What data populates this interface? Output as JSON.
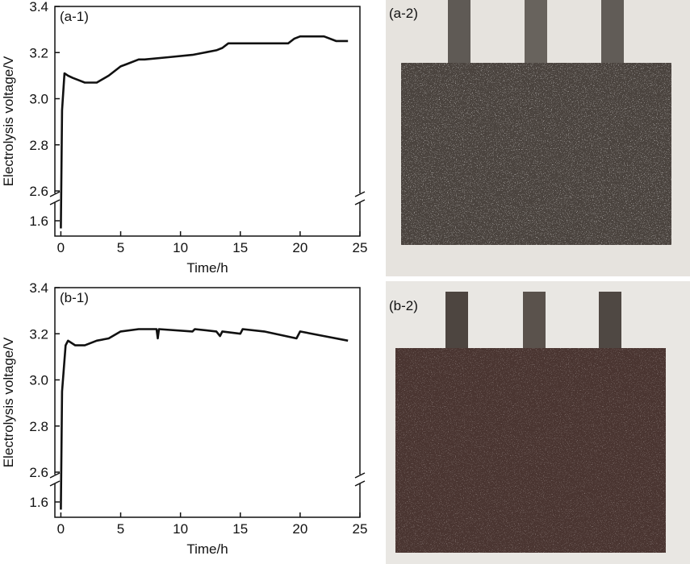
{
  "chart_data": [
    {
      "type": "line",
      "panel_label": "(a-1)",
      "x_label": "Time/h",
      "y_label": "Electrolysis voltage/V",
      "color": "#111111",
      "x": [
        0,
        0.1,
        0.3,
        0.6,
        1,
        1.5,
        2,
        3,
        4,
        5,
        5.5,
        6.5,
        7,
        9,
        11,
        13,
        13.5,
        14,
        17,
        19,
        19.5,
        20,
        22,
        23,
        24
      ],
      "values": [
        1.55,
        2.95,
        3.11,
        3.1,
        3.09,
        3.08,
        3.07,
        3.07,
        3.1,
        3.14,
        3.15,
        3.17,
        3.17,
        3.18,
        3.19,
        3.21,
        3.22,
        3.24,
        3.24,
        3.24,
        3.26,
        3.27,
        3.27,
        3.25,
        3.25
      ],
      "xlim": [
        -0.5,
        25
      ],
      "xticks": [
        0,
        5,
        10,
        15,
        20,
        25
      ],
      "ylim": [
        2.6,
        3.4
      ],
      "yticks": [
        {
          "value": 2.6,
          "label": "2.6"
        },
        {
          "value": 2.8,
          "label": "2.8"
        },
        {
          "value": 3,
          "label": "3.0"
        },
        {
          "value": 3.2,
          "label": "3.2"
        },
        {
          "value": 3.4,
          "label": "3.4"
        }
      ],
      "lower_ylim": [
        1.5,
        1.7
      ],
      "lower_yticks": [
        1.6
      ],
      "axis_break": true
    },
    {
      "type": "line",
      "panel_label": "(b-1)",
      "x_label": "Time/h",
      "y_label": "Electrolysis voltage/V",
      "color": "#111111",
      "x": [
        0,
        0.1,
        0.4,
        0.6,
        1.2,
        2,
        3,
        4,
        5,
        6.5,
        8,
        8.1,
        8.2,
        11,
        11.2,
        13,
        13.3,
        13.5,
        15,
        15.2,
        17,
        19.7,
        20,
        22,
        24
      ],
      "values": [
        1.55,
        2.95,
        3.15,
        3.17,
        3.15,
        3.15,
        3.17,
        3.18,
        3.21,
        3.22,
        3.22,
        3.18,
        3.22,
        3.21,
        3.22,
        3.21,
        3.19,
        3.21,
        3.2,
        3.22,
        3.21,
        3.18,
        3.21,
        3.19,
        3.17
      ],
      "xlim": [
        -0.5,
        25
      ],
      "xticks": [
        0,
        5,
        10,
        15,
        20,
        25
      ],
      "ylim": [
        2.6,
        3.4
      ],
      "yticks": [
        {
          "value": 2.6,
          "label": "2.6"
        },
        {
          "value": 2.8,
          "label": "2.8"
        },
        {
          "value": 3,
          "label": "3.0"
        },
        {
          "value": 3.2,
          "label": "3.2"
        },
        {
          "value": 3.4,
          "label": "3.4"
        }
      ],
      "lower_ylim": [
        1.5,
        1.7
      ],
      "lower_yticks": [
        1.6
      ],
      "axis_break": true
    }
  ],
  "photos": [
    {
      "label": "(a-2)"
    },
    {
      "label": "(b-2)"
    }
  ]
}
